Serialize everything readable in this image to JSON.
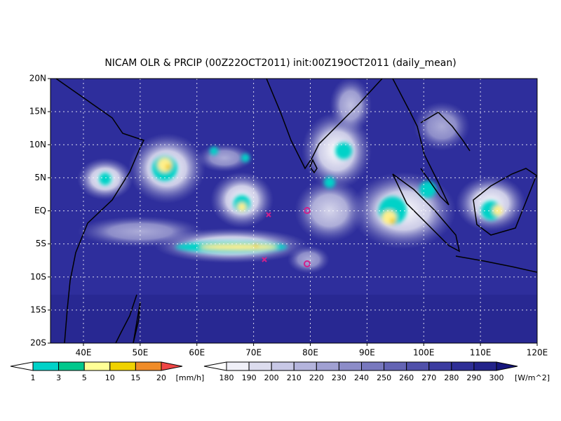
{
  "title": "NICAM OLR & PRCIP (00Z22OCT2011) init:00Z19OCT2011 (daily_mean)",
  "lat_labels": [
    "20N",
    "15N",
    "10N",
    "5N",
    "EQ",
    "5S",
    "10S",
    "15S",
    "20S"
  ],
  "lon_labels": [
    "40E",
    "50E",
    "60E",
    "70E",
    "80E",
    "90E",
    "100E",
    "110E",
    "120E"
  ],
  "precip_colorbar": {
    "labels": [
      1,
      3,
      5,
      10,
      15,
      20
    ],
    "unit": "[mm/h]"
  },
  "olr_colorbar": {
    "labels": [
      180,
      190,
      200,
      210,
      220,
      230,
      240,
      250,
      260,
      270,
      280,
      290,
      300
    ],
    "unit": "[W/m^2]"
  }
}
